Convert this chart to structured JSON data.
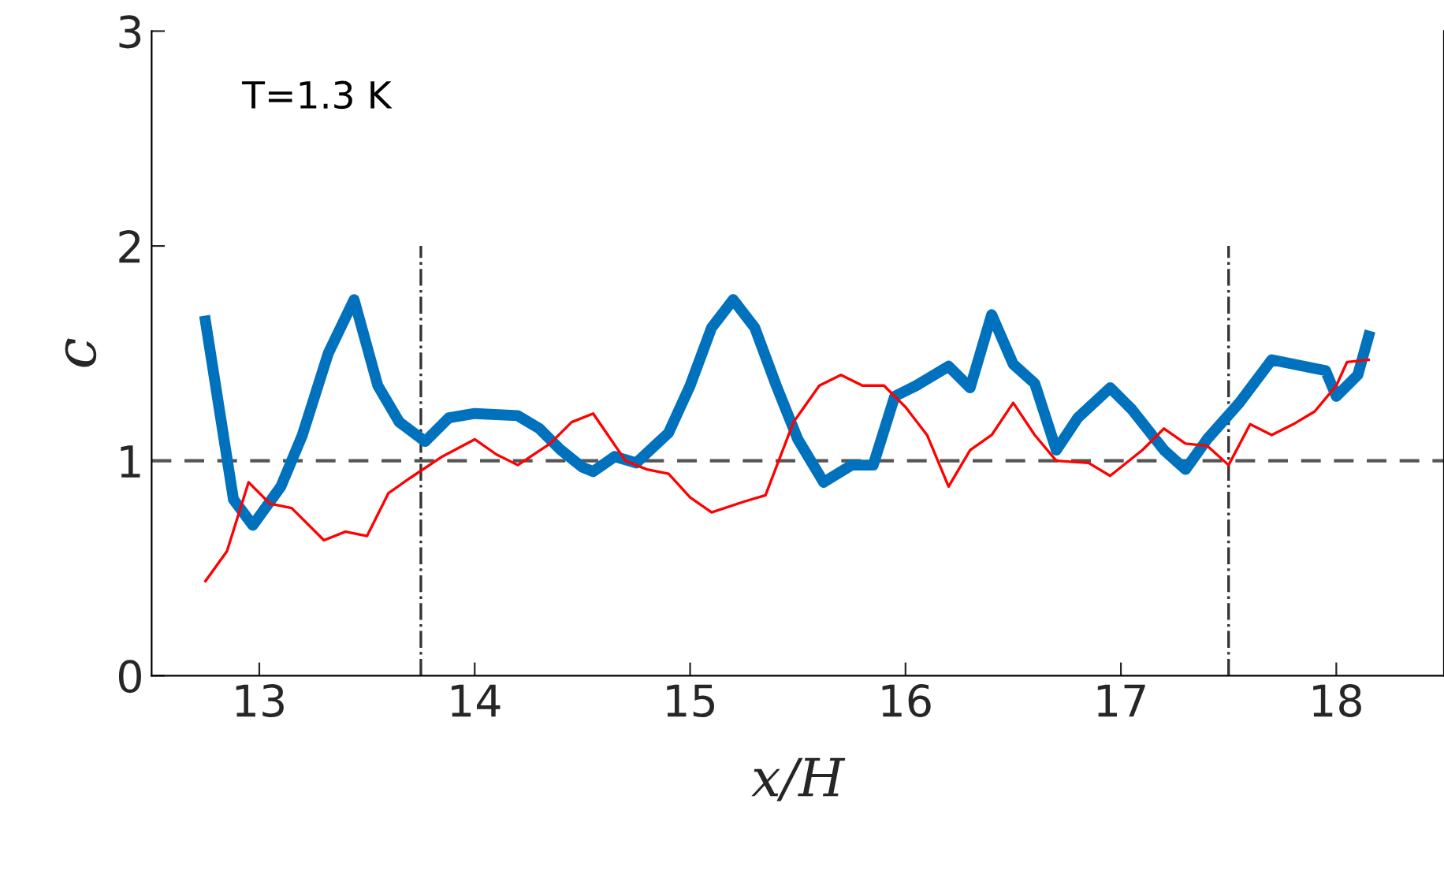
{
  "chart_data": {
    "type": "line",
    "xlabel": "x/H",
    "ylabel": "c",
    "annotations": [
      "T=1.3 K"
    ],
    "xlim": [
      12.5,
      18.5
    ],
    "ylim": [
      0,
      3
    ],
    "xticks": [
      13,
      14,
      15,
      16,
      17,
      18
    ],
    "yticks": [
      0,
      1,
      2,
      3
    ],
    "grid": false,
    "legend": false,
    "ref_lines": [
      {
        "axis": "y",
        "value": 1,
        "color": "#555555",
        "line_style": "dashed"
      },
      {
        "axis": "x",
        "value": 13.75,
        "color": "#333333",
        "line_style": "dashdot"
      },
      {
        "axis": "x",
        "value": 17.5,
        "color": "#333333",
        "line_style": "dashdot"
      }
    ],
    "series": [
      {
        "color": "#0072bd",
        "x": [
          12.75,
          12.88,
          12.97,
          13.1,
          13.2,
          13.32,
          13.44,
          13.55,
          13.65,
          13.77,
          13.88,
          14.0,
          14.2,
          14.3,
          14.4,
          14.5,
          14.55,
          14.65,
          14.75,
          14.9,
          15.0,
          15.1,
          15.2,
          15.3,
          15.4,
          15.5,
          15.62,
          15.75,
          15.85,
          15.95,
          16.05,
          16.2,
          16.3,
          16.4,
          16.5,
          16.6,
          16.7,
          16.8,
          16.95,
          17.05,
          17.2,
          17.3,
          17.4,
          17.55,
          17.7,
          17.85,
          17.95,
          18.0,
          18.1,
          18.15
        ],
        "values": [
          1.65,
          0.82,
          0.7,
          0.88,
          1.12,
          1.5,
          1.75,
          1.35,
          1.18,
          1.09,
          1.2,
          1.22,
          1.21,
          1.15,
          1.05,
          0.97,
          0.95,
          1.02,
          0.99,
          1.13,
          1.35,
          1.62,
          1.75,
          1.62,
          1.35,
          1.1,
          0.9,
          0.98,
          0.98,
          1.3,
          1.35,
          1.44,
          1.34,
          1.68,
          1.45,
          1.36,
          1.05,
          1.2,
          1.34,
          1.24,
          1.05,
          0.96,
          1.1,
          1.27,
          1.47,
          1.44,
          1.42,
          1.3,
          1.4,
          1.58
        ]
      },
      {
        "color": "#ff0000",
        "x": [
          12.75,
          12.85,
          12.95,
          13.05,
          13.15,
          13.3,
          13.4,
          13.5,
          13.6,
          13.7,
          13.85,
          14.0,
          14.1,
          14.2,
          14.35,
          14.45,
          14.55,
          14.7,
          14.8,
          14.9,
          15.0,
          15.1,
          15.25,
          15.35,
          15.48,
          15.6,
          15.7,
          15.8,
          15.9,
          16.0,
          16.1,
          16.2,
          16.3,
          16.4,
          16.5,
          16.6,
          16.7,
          16.85,
          16.95,
          17.1,
          17.2,
          17.3,
          17.4,
          17.5,
          17.6,
          17.7,
          17.8,
          17.9,
          18.0,
          18.05,
          18.15
        ],
        "values": [
          0.44,
          0.58,
          0.9,
          0.8,
          0.78,
          0.63,
          0.67,
          0.65,
          0.85,
          0.92,
          1.02,
          1.1,
          1.03,
          0.98,
          1.08,
          1.18,
          1.22,
          1.0,
          0.96,
          0.94,
          0.83,
          0.76,
          0.81,
          0.84,
          1.18,
          1.35,
          1.4,
          1.35,
          1.35,
          1.25,
          1.12,
          0.88,
          1.05,
          1.12,
          1.27,
          1.12,
          1.0,
          0.99,
          0.93,
          1.05,
          1.15,
          1.08,
          1.07,
          0.98,
          1.17,
          1.12,
          1.17,
          1.23,
          1.35,
          1.46,
          1.47
        ]
      }
    ]
  }
}
